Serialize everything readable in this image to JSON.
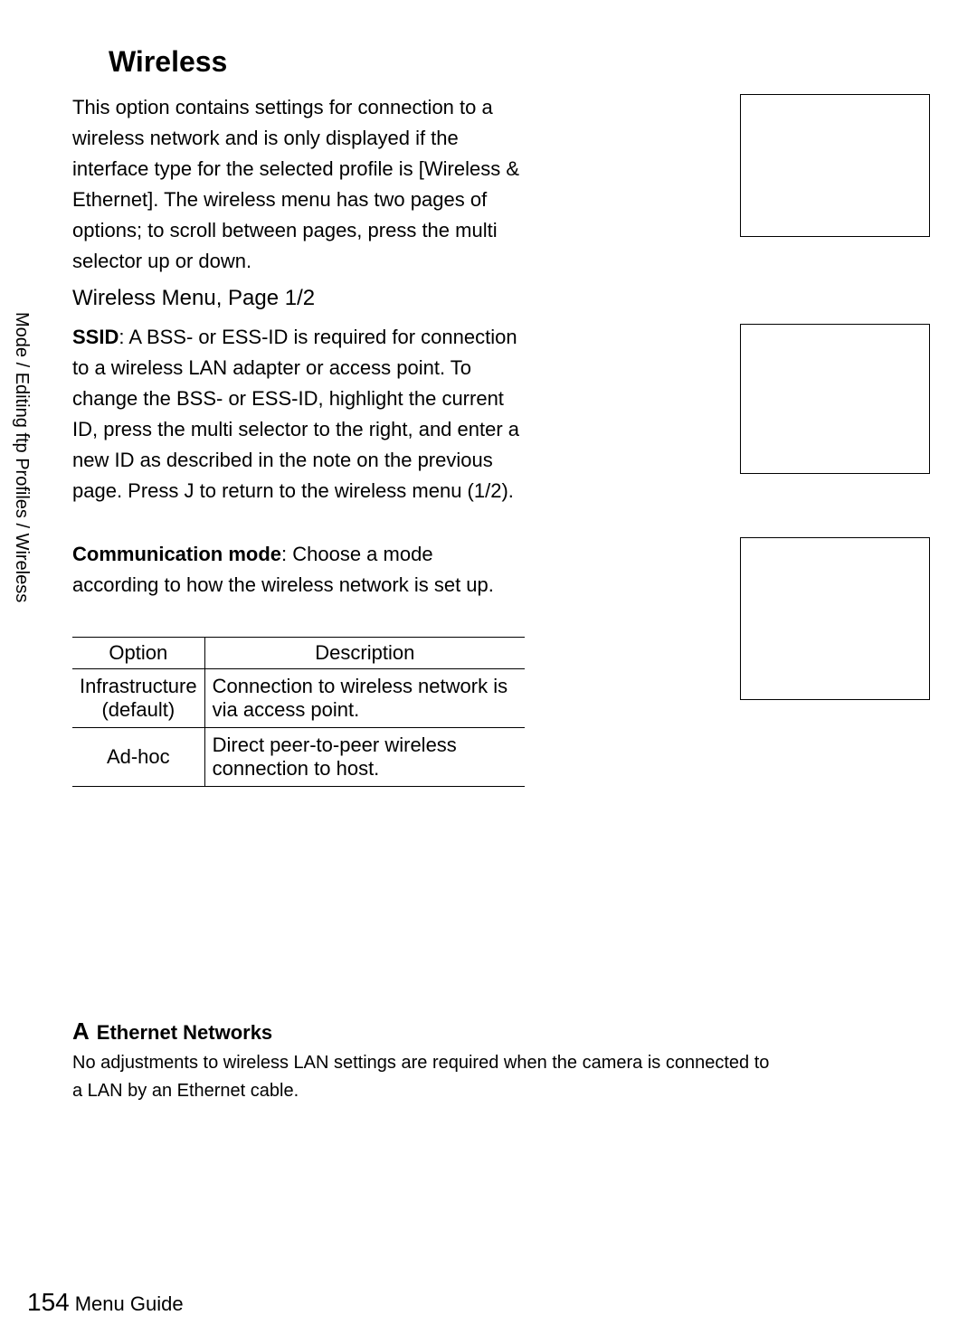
{
  "title": "Wireless",
  "sidebar": "Mode / Editing ftp Profiles / Wireless",
  "intro": "This option contains settings for connection to a wireless network and is only displayed if the interface type for the selected profile is [Wireless & Ethernet].  The wireless menu has two pages of options; to scroll between pages, press the multi selector up or down.",
  "subhead": "Wireless Menu, Page 1/2",
  "ssid": {
    "label": "SSID",
    "text": ": A BSS- or ESS-ID is required for connection to a wireless LAN adapter or access point.  To change the BSS- or ESS-ID, highlight the current ID, press the multi selector to the right, and enter a new ID as described in the note on the previous page.  Press J to return to the wireless menu (1/2)."
  },
  "comm": {
    "label": "Communication mode",
    "text": ": Choose a mode according to how the wireless network is set up."
  },
  "table": {
    "headers": [
      "Option",
      "Description"
    ],
    "rows": [
      [
        "Infrastructure (default)",
        "Connection to wireless network is via access point."
      ],
      [
        "Ad-hoc",
        "Direct peer-to-peer wireless connection to host."
      ]
    ]
  },
  "ethernet": {
    "symbol": "A",
    "heading": "Ethernet Networks",
    "body": "No adjustments to wireless LAN settings are required when the camera is connected to a LAN by an Ethernet cable."
  },
  "footer": {
    "page": "154",
    "section": "Menu Guide"
  }
}
